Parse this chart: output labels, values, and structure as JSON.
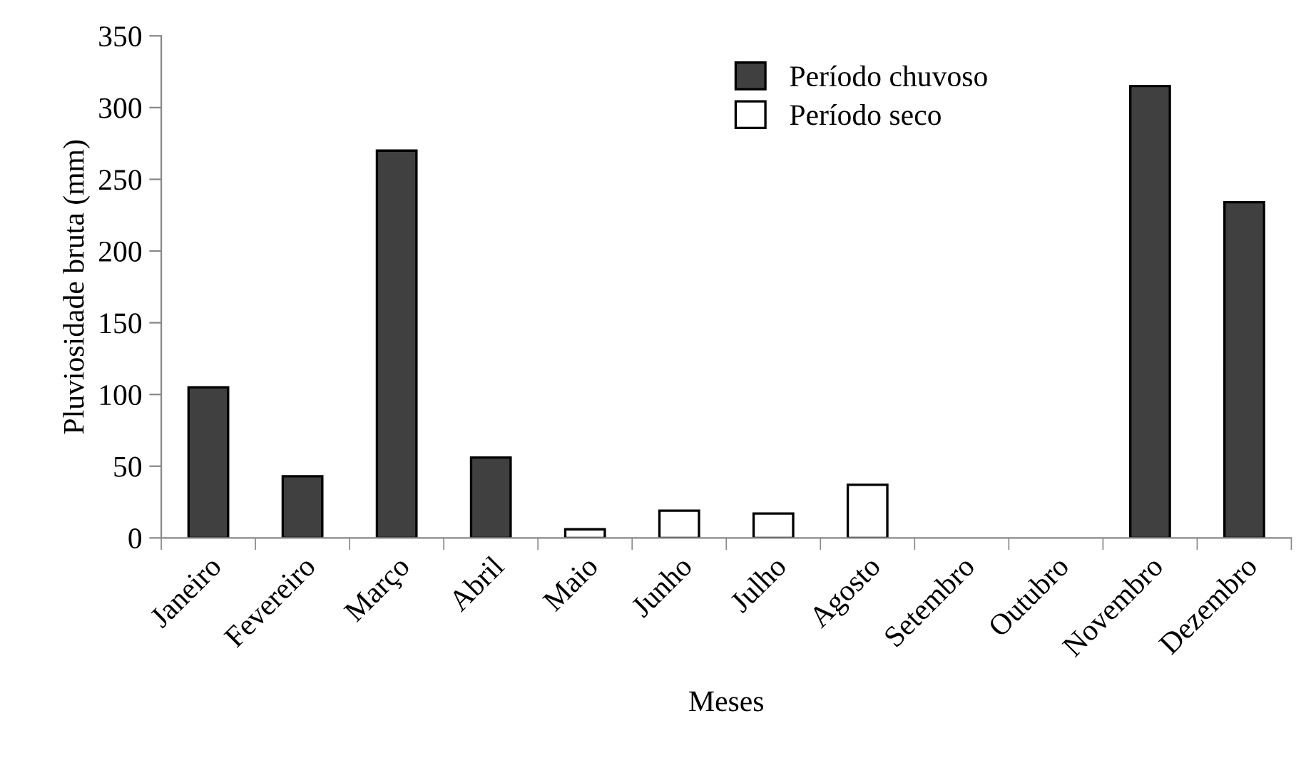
{
  "chart_data": {
    "type": "bar",
    "xlabel": "Meses",
    "ylabel": "Pluviosidade bruta (mm)",
    "categories": [
      "Janeiro",
      "Fevereiro",
      "Março",
      "Abril",
      "Maio",
      "Junho",
      "Julho",
      "Agosto",
      "Setembro",
      "Outubro",
      "Novembro",
      "Dezembro"
    ],
    "series": [
      {
        "name": "Período chuvoso",
        "color": "#404040",
        "values": [
          105,
          43,
          270,
          56,
          null,
          null,
          null,
          null,
          null,
          null,
          315,
          234
        ]
      },
      {
        "name": "Período seco",
        "color": "#ffffff",
        "values": [
          null,
          null,
          null,
          null,
          6,
          19,
          17,
          37,
          null,
          null,
          null,
          null
        ]
      }
    ],
    "ylim": [
      0,
      350
    ],
    "yticks": [
      0,
      50,
      100,
      150,
      200,
      250,
      300,
      350
    ],
    "grid": false,
    "legend": "top"
  }
}
